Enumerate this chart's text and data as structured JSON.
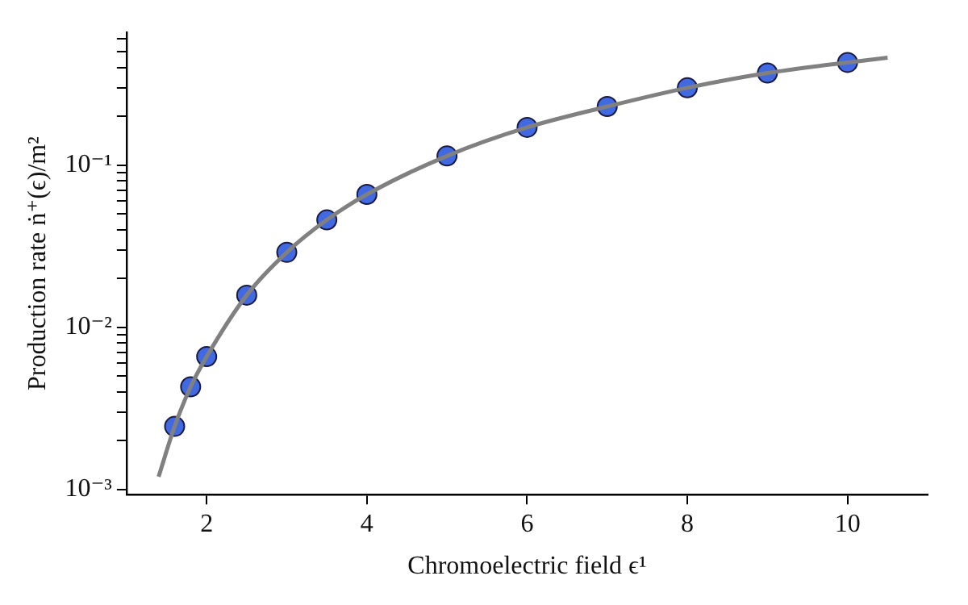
{
  "chart_data": {
    "type": "scatter",
    "xlabel": "Chromoelectric field ϵ¹",
    "ylabel": "Production rate ṅ⁺(ϵ)/m²",
    "log": "y",
    "xlim": [
      1,
      11
    ],
    "xticks": [
      2,
      4,
      6,
      8,
      10
    ],
    "ylim": [
      0.00093,
      0.66
    ],
    "yticks": [
      {
        "value": 0.001,
        "label": "10⁻³"
      },
      {
        "value": 0.002,
        "label": null
      },
      {
        "value": 0.003,
        "label": null
      },
      {
        "value": 0.004,
        "label": null
      },
      {
        "value": 0.005,
        "label": null
      },
      {
        "value": 0.006,
        "label": null
      },
      {
        "value": 0.007,
        "label": null
      },
      {
        "value": 0.008,
        "label": null
      },
      {
        "value": 0.009,
        "label": null
      },
      {
        "value": 0.01,
        "label": "10⁻²"
      },
      {
        "value": 0.02,
        "label": null
      },
      {
        "value": 0.03,
        "label": null
      },
      {
        "value": 0.04,
        "label": null
      },
      {
        "value": 0.05,
        "label": null
      },
      {
        "value": 0.06,
        "label": null
      },
      {
        "value": 0.07,
        "label": null
      },
      {
        "value": 0.08,
        "label": null
      },
      {
        "value": 0.09,
        "label": null
      },
      {
        "value": 0.1,
        "label": "10⁻¹"
      },
      {
        "value": 0.2,
        "label": null
      },
      {
        "value": 0.3,
        "label": null
      },
      {
        "value": 0.4,
        "label": null
      },
      {
        "value": 0.5,
        "label": null
      },
      {
        "value": 0.6,
        "label": null
      }
    ],
    "series": [
      {
        "type": "line",
        "color": "#808080",
        "marker": "none",
        "x": [
          1.4,
          1.6,
          1.8,
          2,
          2.5,
          3,
          3.5,
          4,
          5,
          6,
          7,
          8,
          9,
          10,
          10.5
        ],
        "values": [
          0.0012,
          0.00245,
          0.0043,
          0.0066,
          0.0158,
          0.029,
          0.046,
          0.066,
          0.114,
          0.171,
          0.23,
          0.3,
          0.37,
          0.43,
          0.46
        ]
      },
      {
        "type": "scatter",
        "color": "#4169e1",
        "marker": "circle",
        "x": [
          1.6,
          1.8,
          2,
          2.5,
          3,
          3.5,
          4,
          5,
          6,
          7,
          8,
          9,
          10
        ],
        "values": [
          0.00245,
          0.0043,
          0.0066,
          0.0158,
          0.029,
          0.046,
          0.066,
          0.114,
          0.171,
          0.23,
          0.3,
          0.37,
          0.43
        ]
      }
    ]
  }
}
